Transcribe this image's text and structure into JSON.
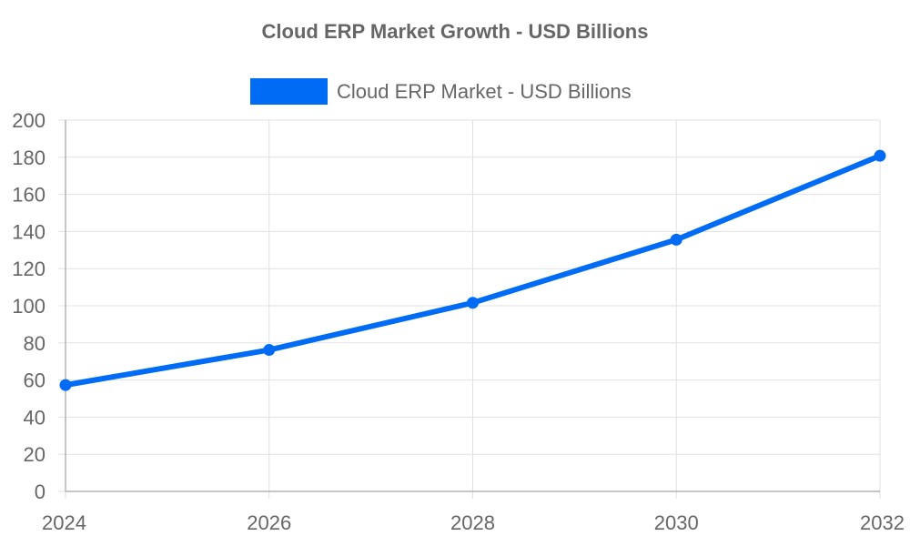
{
  "chart_data": {
    "type": "line",
    "title": "Cloud ERP Market Growth - USD Billions",
    "xlabel": "",
    "ylabel": "",
    "x": [
      "2024",
      "2026",
      "2028",
      "2030",
      "2032"
    ],
    "series": [
      {
        "name": "Cloud ERP Market - USD Billions",
        "values": [
          57.3,
          76.2,
          101.6,
          135.6,
          180.8
        ]
      }
    ],
    "ylim": [
      0,
      200
    ],
    "yticks": [
      0,
      20,
      40,
      60,
      80,
      100,
      120,
      140,
      160,
      180,
      200
    ],
    "grid": true,
    "legend": "top-center",
    "colors": {
      "series": "#006cf5"
    }
  }
}
